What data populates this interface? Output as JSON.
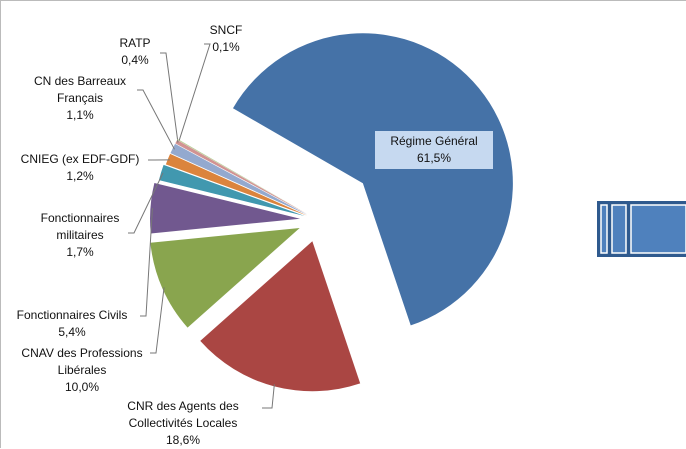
{
  "chart_data": {
    "type": "pie",
    "categories": [
      "Régime Général",
      "CNR des Agents des Collectivités Locales",
      "CNAV des Professions Libérales",
      "Fonctionnaires Civils",
      "Fonctionnaires militaires",
      "CNIEG (ex EDF-GDF)",
      "CN des Barreaux Français",
      "RATP",
      "SNCF"
    ],
    "values": [
      61.5,
      18.6,
      10.0,
      5.4,
      1.7,
      1.2,
      1.1,
      0.4,
      0.1
    ],
    "value_labels": [
      "61,5%",
      "18,6%",
      "10,0%",
      "5,4%",
      "1,7%",
      "1,2%",
      "1,1%",
      "0,4%",
      "0,1%"
    ],
    "colors": [
      "#4572a7",
      "#aa4643",
      "#89a54e",
      "#71588f",
      "#4198af",
      "#db843d",
      "#93a9cf",
      "#d19392",
      "#b9cd96"
    ]
  }
}
